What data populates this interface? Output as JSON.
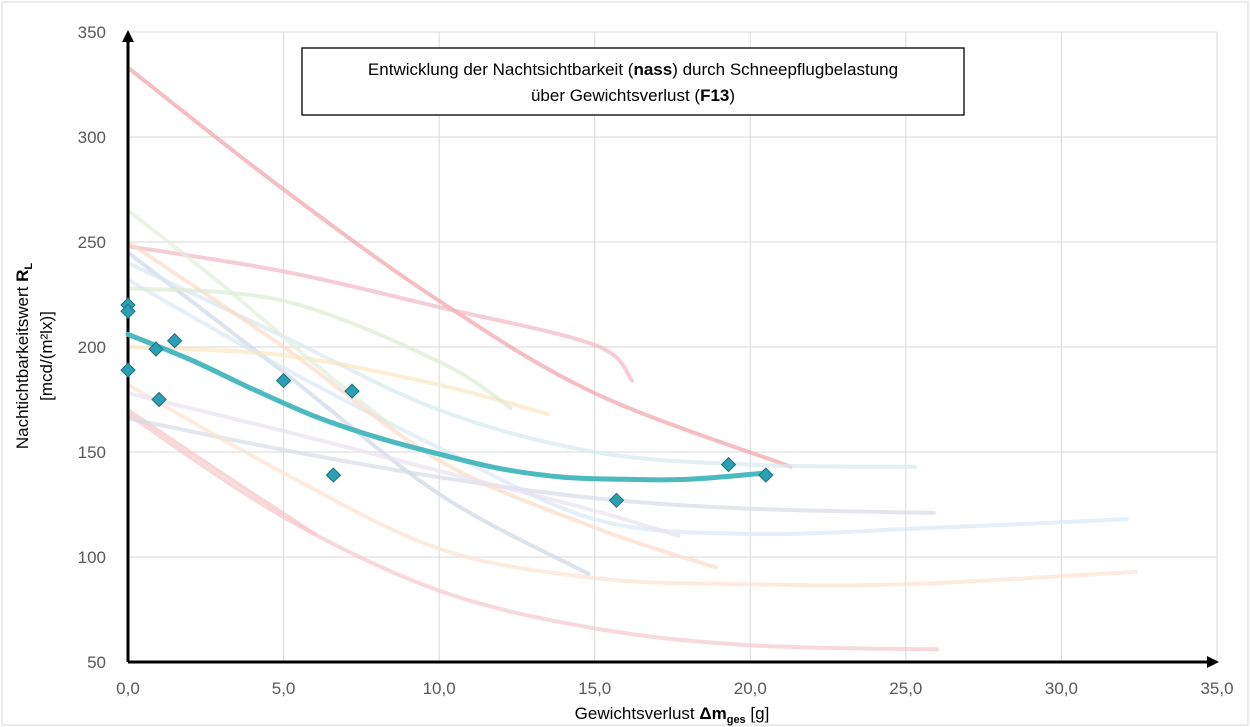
{
  "chart_data": {
    "type": "scatter",
    "title": {
      "line1_pre": "Entwicklung der Nachtsichtbarkeit (",
      "line1_bold": "nass",
      "line1_post": ") durch Schneepflugbelastung",
      "line2_pre": "über Gewichtsverlust (",
      "line2_bold": "F13",
      "line2_post": ")"
    },
    "xlabel": {
      "pre": "Gewichtsverlust ",
      "bold": "Δm",
      "sub": "ges",
      "post": " [g]"
    },
    "ylabel": {
      "line1_pre": "Nachtichtbarkeitswert ",
      "line1_bold": "R",
      "line1_sub": "L",
      "line2": "[mcd/(m²lx)]"
    },
    "xlim": [
      0,
      35
    ],
    "ylim": [
      50,
      350
    ],
    "x_ticks": [
      "0,0",
      "5,0",
      "10,0",
      "15,0",
      "20,0",
      "25,0",
      "30,0",
      "35,0"
    ],
    "y_ticks": [
      "50",
      "100",
      "150",
      "200",
      "250",
      "300",
      "350"
    ],
    "grid": true,
    "points_color": "#2aa1b3",
    "fit_color": "#4bbac0",
    "points": [
      {
        "x": 0.0,
        "y": 220
      },
      {
        "x": 0.0,
        "y": 217
      },
      {
        "x": 0.0,
        "y": 189
      },
      {
        "x": 0.9,
        "y": 199
      },
      {
        "x": 1.0,
        "y": 175
      },
      {
        "x": 1.5,
        "y": 203
      },
      {
        "x": 5.0,
        "y": 184
      },
      {
        "x": 6.6,
        "y": 139
      },
      {
        "x": 7.2,
        "y": 179
      },
      {
        "x": 15.7,
        "y": 127
      },
      {
        "x": 19.3,
        "y": 144
      },
      {
        "x": 20.5,
        "y": 139
      }
    ],
    "fit": [
      {
        "x": 0.0,
        "y": 206
      },
      {
        "x": 2.0,
        "y": 194
      },
      {
        "x": 4.0,
        "y": 180
      },
      {
        "x": 6.0,
        "y": 167
      },
      {
        "x": 8.0,
        "y": 157
      },
      {
        "x": 10.0,
        "y": 149
      },
      {
        "x": 12.0,
        "y": 142
      },
      {
        "x": 14.0,
        "y": 138
      },
      {
        "x": 16.0,
        "y": 137
      },
      {
        "x": 18.0,
        "y": 137
      },
      {
        "x": 20.5,
        "y": 140
      }
    ],
    "background_series": [
      {
        "color": "#f2a3a8",
        "points": [
          {
            "x": 0,
            "y": 333
          },
          {
            "x": 5,
            "y": 275
          },
          {
            "x": 10,
            "y": 222
          },
          {
            "x": 15,
            "y": 178
          },
          {
            "x": 21.3,
            "y": 143
          }
        ]
      },
      {
        "color": "#f2b6c4",
        "points": [
          {
            "x": 0,
            "y": 248
          },
          {
            "x": 5,
            "y": 236
          },
          {
            "x": 10,
            "y": 219
          },
          {
            "x": 15,
            "y": 201
          },
          {
            "x": 16.2,
            "y": 184
          }
        ]
      },
      {
        "color": "#f4c7cf",
        "points": [
          {
            "x": 0,
            "y": 168
          },
          {
            "x": 5,
            "y": 119
          },
          {
            "x": 10,
            "y": 84
          },
          {
            "x": 15,
            "y": 66
          },
          {
            "x": 20,
            "y": 58
          },
          {
            "x": 26,
            "y": 56
          }
        ]
      },
      {
        "color": "#f7c6c9",
        "points": [
          {
            "x": 0,
            "y": 170
          },
          {
            "x": 3,
            "y": 140
          },
          {
            "x": 6,
            "y": 111
          }
        ]
      },
      {
        "color": "#cfd5e8",
        "points": [
          {
            "x": 0,
            "y": 245
          },
          {
            "x": 5,
            "y": 188
          },
          {
            "x": 10,
            "y": 130
          },
          {
            "x": 14.8,
            "y": 92
          }
        ]
      },
      {
        "color": "#d7dbe6",
        "points": [
          {
            "x": 0,
            "y": 166
          },
          {
            "x": 5,
            "y": 151
          },
          {
            "x": 10,
            "y": 138
          },
          {
            "x": 15,
            "y": 128
          },
          {
            "x": 20,
            "y": 123
          },
          {
            "x": 25.9,
            "y": 121
          }
        ]
      },
      {
        "color": "#dce7f4",
        "points": [
          {
            "x": 0,
            "y": 232
          },
          {
            "x": 5,
            "y": 190
          },
          {
            "x": 10,
            "y": 152
          },
          {
            "x": 15,
            "y": 118
          },
          {
            "x": 20,
            "y": 111
          },
          {
            "x": 26,
            "y": 114
          },
          {
            "x": 32.1,
            "y": 118
          }
        ]
      },
      {
        "color": "#d9e8ef",
        "points": [
          {
            "x": 0,
            "y": 240
          },
          {
            "x": 5,
            "y": 205
          },
          {
            "x": 10,
            "y": 170
          },
          {
            "x": 15,
            "y": 150
          },
          {
            "x": 20,
            "y": 144
          },
          {
            "x": 25.3,
            "y": 143
          }
        ]
      },
      {
        "color": "#fbdcc8",
        "points": [
          {
            "x": 0,
            "y": 250
          },
          {
            "x": 5,
            "y": 200
          },
          {
            "x": 10,
            "y": 146
          },
          {
            "x": 15,
            "y": 114
          },
          {
            "x": 18.9,
            "y": 95
          }
        ]
      },
      {
        "color": "#fce2d3",
        "points": [
          {
            "x": 0,
            "y": 182
          },
          {
            "x": 5,
            "y": 140
          },
          {
            "x": 10,
            "y": 104
          },
          {
            "x": 15,
            "y": 90
          },
          {
            "x": 20,
            "y": 87
          },
          {
            "x": 25,
            "y": 87
          },
          {
            "x": 32.4,
            "y": 93
          }
        ]
      },
      {
        "color": "#fbe7c0",
        "points": [
          {
            "x": 0,
            "y": 200
          },
          {
            "x": 5,
            "y": 196
          },
          {
            "x": 10,
            "y": 182
          },
          {
            "x": 13.5,
            "y": 168
          }
        ]
      },
      {
        "color": "#dcebd6",
        "points": [
          {
            "x": 0,
            "y": 228
          },
          {
            "x": 5,
            "y": 222
          },
          {
            "x": 10,
            "y": 193
          },
          {
            "x": 12.3,
            "y": 171
          }
        ]
      },
      {
        "color": "#e1eedb",
        "points": [
          {
            "x": 0,
            "y": 265
          },
          {
            "x": 3,
            "y": 230
          },
          {
            "x": 6,
            "y": 192
          },
          {
            "x": 8.5,
            "y": 162
          }
        ]
      },
      {
        "color": "#e8e1ef",
        "points": [
          {
            "x": 0,
            "y": 178
          },
          {
            "x": 5,
            "y": 160
          },
          {
            "x": 10,
            "y": 141
          },
          {
            "x": 15,
            "y": 122
          },
          {
            "x": 17.7,
            "y": 110
          }
        ]
      }
    ]
  }
}
